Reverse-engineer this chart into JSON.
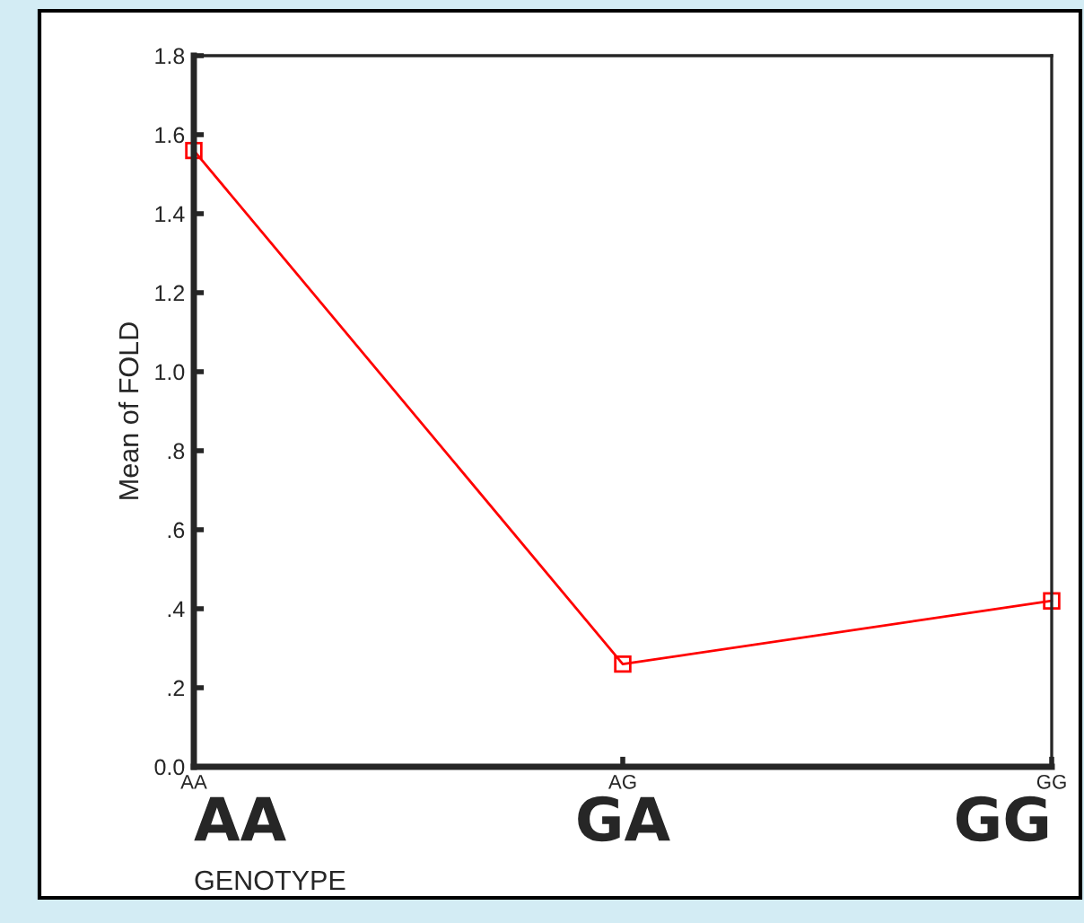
{
  "chart_data": {
    "type": "line",
    "ylabel": "Mean of FOLD",
    "xlabel": "GENOTYPE",
    "categories": [
      "AA",
      "AG",
      "GG"
    ],
    "series": [
      {
        "color": "#ff0000",
        "values": [
          1.56,
          0.26,
          0.42
        ]
      }
    ],
    "ylim": [
      0,
      1.8
    ],
    "yticks": [
      {
        "value": 0,
        "label": "0.0"
      },
      {
        "value": 0.2,
        "label": ".2"
      },
      {
        "value": 0.4,
        "label": ".4"
      },
      {
        "value": 0.6,
        "label": ".6"
      },
      {
        "value": 0.8,
        "label": ".8"
      },
      {
        "value": 1.0,
        "label": "1.0"
      },
      {
        "value": 1.2,
        "label": "1.2"
      },
      {
        "value": 1.4,
        "label": "1.4"
      },
      {
        "value": 1.6,
        "label": "1.6"
      },
      {
        "value": 1.8,
        "label": "1.8"
      }
    ],
    "marker": "square",
    "line_style": "solid",
    "grid": false,
    "legend": false,
    "annotations": [
      "AA",
      "GA",
      "GG"
    ]
  }
}
